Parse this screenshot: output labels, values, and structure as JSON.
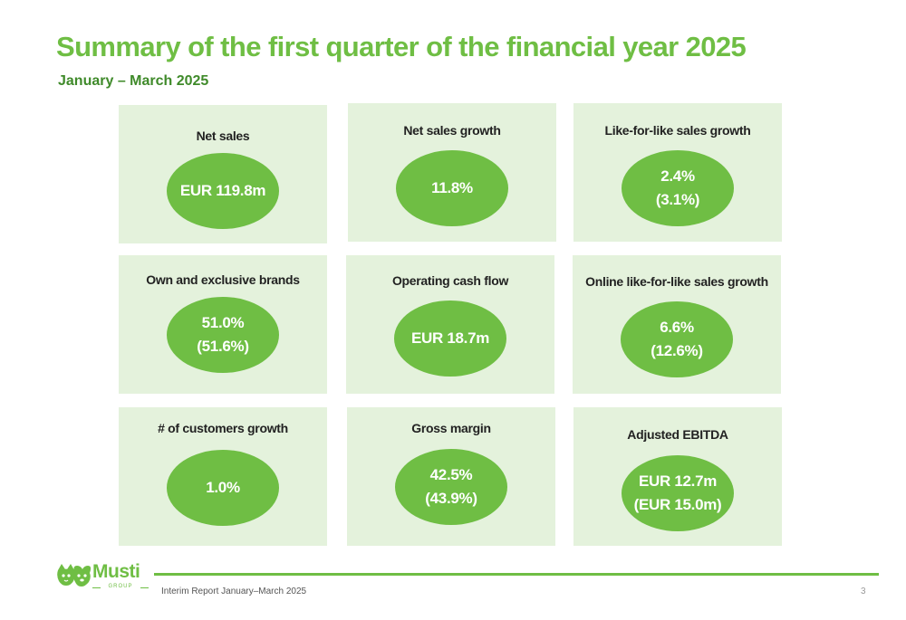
{
  "header": {
    "title": "Summary of the first quarter of the financial year 2025",
    "subtitle": "January – March 2025"
  },
  "kpis": [
    {
      "label": "Net sales",
      "lines": [
        "EUR 119.8m"
      ]
    },
    {
      "label": "Net sales growth",
      "lines": [
        "11.8%"
      ]
    },
    {
      "label": "Like-for-like sales growth",
      "lines": [
        "2.4%",
        "(3.1%)"
      ]
    },
    {
      "label": "Own and exclusive brands",
      "lines": [
        "51.0%",
        "(51.6%)"
      ]
    },
    {
      "label": "Operating cash flow",
      "lines": [
        "EUR 18.7m"
      ]
    },
    {
      "label": "Online like-for-like sales growth",
      "lines": [
        "6.6%",
        "(12.6%)"
      ]
    },
    {
      "label": "# of customers growth",
      "lines": [
        "1.0%"
      ]
    },
    {
      "label": "Gross margin",
      "lines": [
        "42.5%",
        "(43.9%)"
      ]
    },
    {
      "label": "Adjusted EBITDA",
      "lines": [
        "EUR 12.7m",
        "(EUR 15.0m)"
      ]
    }
  ],
  "footer": {
    "logo_word": "Musti",
    "logo_sub": "GROUP",
    "report": "Interim Report January–March 2025",
    "page": "3"
  },
  "colors": {
    "brand_green": "#6fbe44",
    "subtitle_green": "#3f8a2a",
    "card_bg": "#e4f2dc"
  },
  "icons": {
    "logo": "paw-cat-dog-logo-icon"
  }
}
